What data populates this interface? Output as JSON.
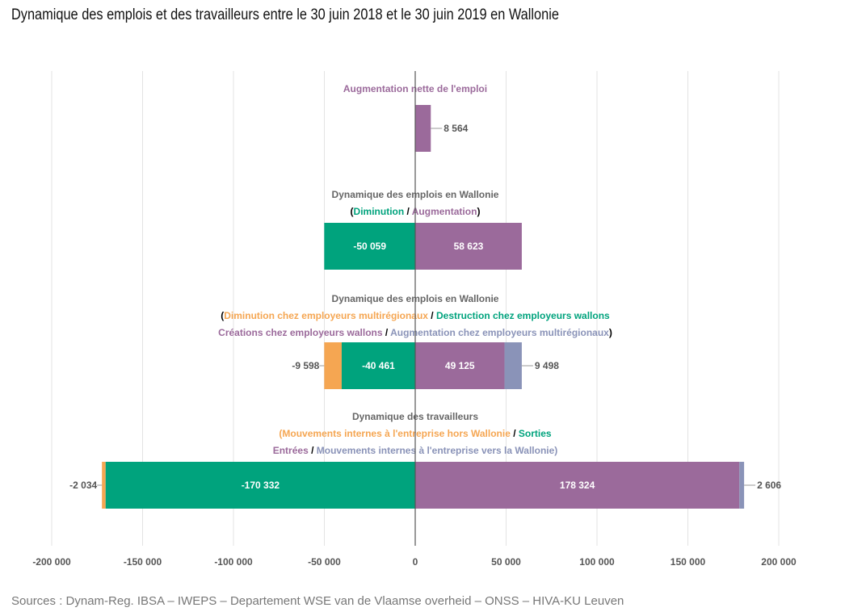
{
  "title": "Dynamique des emplois et des travailleurs entre le 30 juin 2018 et le 30 juin 2019 en Wallonie",
  "source": "Sources : Dynam-Reg. IBSA – IWEPS – Departement WSE van de Vlaamse overheid – ONSS – HIVA-KU Leuven",
  "chart_data": {
    "type": "bar",
    "orientation": "horizontal",
    "stacked": true,
    "xlim": [
      -200000,
      200000
    ],
    "x_ticks": [
      -200000,
      -150000,
      -100000,
      -50000,
      0,
      50000,
      100000,
      150000,
      200000
    ],
    "x_tick_labels": [
      "-200 000",
      "-150 000",
      "-100 000",
      "-50 000",
      "0",
      "50 000",
      "100 000",
      "150 000",
      "200 000"
    ],
    "grid": true,
    "colors": {
      "purple": "#9b6a9b",
      "green": "#00a37d",
      "orange": "#f5a652",
      "blue": "#8a93b8",
      "header": "#666666",
      "text_on_bar": "#ffffff",
      "outside_label": "#555555"
    },
    "groups": [
      {
        "header_lines": [
          [
            {
              "text": "Augmentation nette de l'emploi",
              "color": "purple"
            }
          ]
        ],
        "segments": [
          {
            "start": 0,
            "end": 8564,
            "color": "purple",
            "label": "8 564",
            "label_pos": "outside-right"
          }
        ]
      },
      {
        "header_lines": [
          [
            {
              "text": "Dynamique des emplois en Wallonie",
              "color": "header"
            }
          ],
          [
            {
              "text": "(",
              "color": "#000000"
            },
            {
              "text": "Diminution",
              "color": "green"
            },
            {
              "text": " / ",
              "color": "#000000"
            },
            {
              "text": "Augmentation",
              "color": "purple"
            },
            {
              "text": ")",
              "color": "#000000"
            }
          ]
        ],
        "segments": [
          {
            "start": -50059,
            "end": 0,
            "color": "green",
            "label": "-50 059",
            "label_pos": "inside"
          },
          {
            "start": 0,
            "end": 58623,
            "color": "purple",
            "label": "58 623",
            "label_pos": "inside"
          }
        ]
      },
      {
        "header_lines": [
          [
            {
              "text": "Dynamique des emplois en Wallonie",
              "color": "header"
            }
          ],
          [
            {
              "text": "(",
              "color": "#000000"
            },
            {
              "text": "Diminution chez employeurs multirégionaux",
              "color": "orange"
            },
            {
              "text": " / ",
              "color": "#000000"
            },
            {
              "text": "Destruction chez employeurs wallons",
              "color": "green"
            }
          ],
          [
            {
              "text": "Créations chez employeurs wallons",
              "color": "purple"
            },
            {
              "text": " / ",
              "color": "#000000"
            },
            {
              "text": "Augmentation chez employeurs multirégionaux",
              "color": "blue"
            },
            {
              "text": ")",
              "color": "#000000"
            }
          ]
        ],
        "segments": [
          {
            "start": -50059,
            "end": -40461,
            "color": "orange",
            "label": "-9 598",
            "label_pos": "outside-left"
          },
          {
            "start": -40461,
            "end": 0,
            "color": "green",
            "label": "-40 461",
            "label_pos": "inside"
          },
          {
            "start": 0,
            "end": 49125,
            "color": "purple",
            "label": "49 125",
            "label_pos": "inside"
          },
          {
            "start": 49125,
            "end": 58623,
            "color": "blue",
            "label": "9 498",
            "label_pos": "outside-right"
          }
        ]
      },
      {
        "header_lines": [
          [
            {
              "text": "Dynamique des travailleurs",
              "color": "header"
            }
          ],
          [
            {
              "text": "(Mouvements internes à l'entreprise hors Wallonie",
              "color": "orange"
            },
            {
              "text": " / ",
              "color": "#000000"
            },
            {
              "text": "Sorties",
              "color": "green"
            }
          ],
          [
            {
              "text": "Entrées",
              "color": "purple"
            },
            {
              "text": " / ",
              "color": "#000000"
            },
            {
              "text": "Mouvements internes à l'entreprise vers la Wallonie)",
              "color": "blue"
            }
          ]
        ],
        "segments": [
          {
            "start": -172366,
            "end": -170332,
            "color": "orange",
            "label": "-2 034",
            "label_pos": "outside-left"
          },
          {
            "start": -170332,
            "end": 0,
            "color": "green",
            "label": "-170 332",
            "label_pos": "inside"
          },
          {
            "start": 0,
            "end": 178324,
            "color": "purple",
            "label": "178 324",
            "label_pos": "inside"
          },
          {
            "start": 178324,
            "end": 180930,
            "color": "blue",
            "label": "2 606",
            "label_pos": "outside-right"
          }
        ]
      }
    ]
  }
}
